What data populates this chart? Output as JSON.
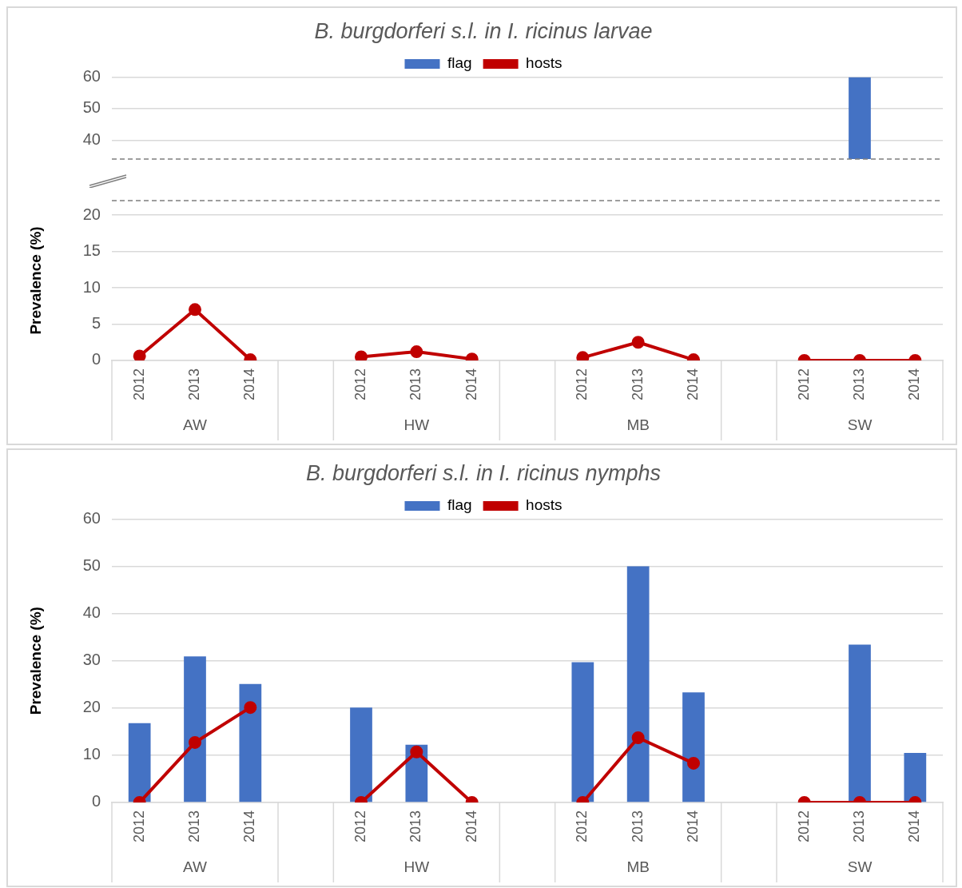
{
  "chart_data": [
    {
      "type": "bar",
      "title": "B. burgdorferi s.l. in I. ricinus larvae",
      "categories": [
        "2012",
        "2013",
        "2014",
        null,
        "2012",
        "2013",
        "2014",
        null,
        "2012",
        "2013",
        "2014",
        null,
        "2012",
        "2013",
        "2014"
      ],
      "series": [
        {
          "name": "flag",
          "color": "#4472c4",
          "values": [
            null,
            null,
            null,
            null,
            null,
            null,
            null,
            null,
            null,
            null,
            null,
            null,
            null,
            60,
            null
          ]
        },
        {
          "name": "hosts",
          "type": "line",
          "color": "#c00000",
          "values": [
            null,
            null,
            null,
            null,
            null,
            null,
            null,
            null,
            null,
            null,
            null,
            null,
            null,
            null,
            null
          ]
        }
      ],
      "ylim": [
        34,
        60
      ],
      "yticks": [
        40,
        50,
        60
      ],
      "grid": "y",
      "legend": "top",
      "marker": "circle",
      "tick_labels": "y"
    },
    {
      "type": "bar",
      "ylabel": "Prevalence (%)",
      "categories": [
        "2012",
        "2013",
        "2014",
        null,
        "2012",
        "2013",
        "2014",
        null,
        "2012",
        "2013",
        "2014",
        null,
        "2012",
        "2013",
        "2014"
      ],
      "annotations": [
        "AW",
        "HW",
        "MB",
        "SW"
      ],
      "series": [
        {
          "color": "#4472c4",
          "values": [
            null,
            null,
            null,
            null,
            null,
            null,
            null,
            null,
            null,
            null,
            null,
            null,
            null,
            null,
            null
          ]
        },
        {
          "type": "line",
          "color": "#c00000",
          "values": [
            0.6,
            7,
            0.1,
            null,
            0.5,
            1.2,
            0.2,
            null,
            0.4,
            2.5,
            0.1,
            null,
            0,
            0,
            0
          ]
        }
      ],
      "ylim": [
        0,
        22
      ],
      "yticks": [
        0,
        5,
        10,
        15,
        20
      ],
      "grid": "y",
      "marker": "circle"
    },
    {
      "type": "bar",
      "title": "B. burgdorferi s.l. in I. ricinus nymphs",
      "ylabel": "Prevalence (%)",
      "categories": [
        "2012",
        "2013",
        "2014",
        null,
        "2012",
        "2013",
        "2014",
        null,
        "2012",
        "2013",
        "2014",
        null,
        "2012",
        "2013",
        "2014"
      ],
      "annotations": [
        "AW",
        "HW",
        "MB",
        "SW"
      ],
      "series": [
        {
          "name": "flag",
          "color": "#4472c4",
          "values": [
            16.8,
            30.9,
            25.1,
            null,
            20.1,
            12.2,
            null,
            null,
            29.7,
            50,
            23.3,
            null,
            null,
            33.4,
            10.5
          ]
        },
        {
          "name": "hosts",
          "type": "line",
          "color": "#c00000",
          "values": [
            0,
            12.7,
            20.1,
            null,
            0,
            10.7,
            0,
            null,
            0,
            13.7,
            8.3,
            null,
            0,
            0,
            0
          ]
        }
      ],
      "ylim": [
        0,
        60
      ],
      "yticks": [
        0,
        10,
        20,
        30,
        40,
        50,
        60
      ],
      "grid": "y",
      "legend": "top",
      "marker": "circle"
    }
  ]
}
